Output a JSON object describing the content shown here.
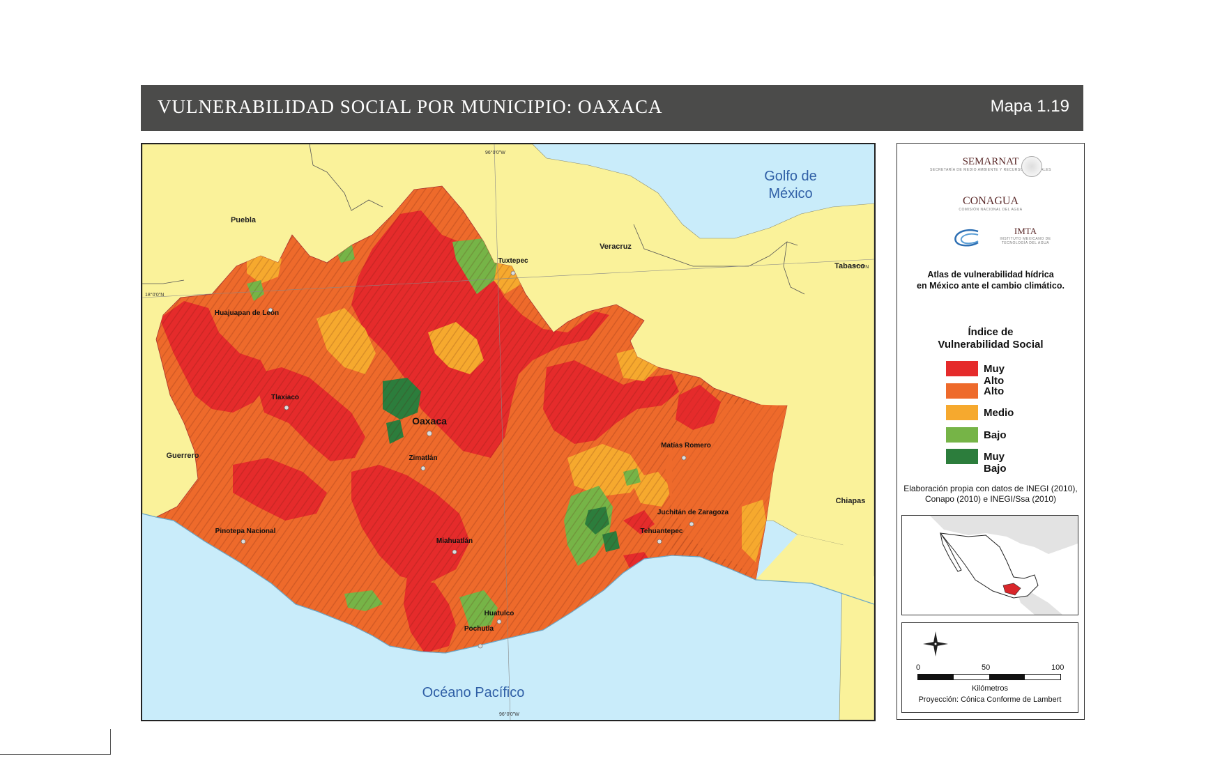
{
  "header": {
    "title": "VULNERABILIDAD SOCIAL POR MUNICIPIO: OAXACA",
    "map_number": "Mapa 1.19"
  },
  "map": {
    "graticule": {
      "top": "96°0'0\"W",
      "bottom": "96°0'0\"W",
      "left": "18°0'0\"N",
      "right": "18°0'0\"N"
    },
    "water_labels": {
      "gulf_line1": "Golfo de",
      "gulf_line2": "México",
      "pacific": "Océano Pacífico"
    },
    "states": {
      "puebla": "Puebla",
      "veracruz": "Veracruz",
      "tabasco": "Tabasco",
      "guerrero": "Guerrero",
      "chiapas": "Chiapas"
    },
    "cities": {
      "tuxtepec": "Tuxtepec",
      "huajuapan": "Huajuapan de León",
      "tlaxiaco": "Tlaxiaco",
      "oaxaca": "Oaxaca",
      "zimatlan": "Zimatlán",
      "matias_romero": "Matías Romero",
      "juchitan": "Juchitán de Zaragoza",
      "tehuantepec": "Tehuantepec",
      "pinotepa": "Pinotepa Nacional",
      "miahuatlan": "Miahuatlán",
      "huatulco": "Huatulco",
      "pochutla": "Pochutla"
    },
    "colors": {
      "muy_alto": "#e52b2b",
      "alto": "#ee6a2b",
      "medio": "#f6a92e",
      "bajo": "#76b447",
      "muy_bajo": "#2c7d3c",
      "neighbor": "#faf29a",
      "water": "#c9ecfa"
    }
  },
  "panel": {
    "logos": {
      "semarnat": "SEMARNAT",
      "semarnat_sub": "SECRETARÍA DE MEDIO AMBIENTE Y RECURSOS NATURALES",
      "conagua": "CONAGUA",
      "conagua_sub": "COMISIÓN NACIONAL DEL AGUA",
      "imta": "IMTA",
      "imta_sub": "INSTITUTO MEXICANO DE TECNOLOGÍA DEL AGUA"
    },
    "atlas_line1": "Atlas de vulnerabilidad hídrica",
    "atlas_line2": "en México ante el cambio climático.",
    "legend_title_line1": "Índice de",
    "legend_title_line2": "Vulnerabilidad Social",
    "legend": [
      {
        "label": "Muy Alto",
        "color": "#e52b2b"
      },
      {
        "label": "Alto",
        "color": "#ee6a2b"
      },
      {
        "label": "Medio",
        "color": "#f6a92e"
      },
      {
        "label": "Bajo",
        "color": "#76b447"
      },
      {
        "label": "Muy Bajo",
        "color": "#2c7d3c"
      }
    ],
    "source_line1": "Elaboración propia con datos de INEGI (2010),",
    "source_line2": "Conapo (2010) e INEGI/Ssa (2010)",
    "scale": {
      "tick0": "0",
      "tick1": "50",
      "tick2": "100",
      "unit": "Kilómetros",
      "projection": "Proyección: Cónica Conforme de Lambert"
    }
  }
}
